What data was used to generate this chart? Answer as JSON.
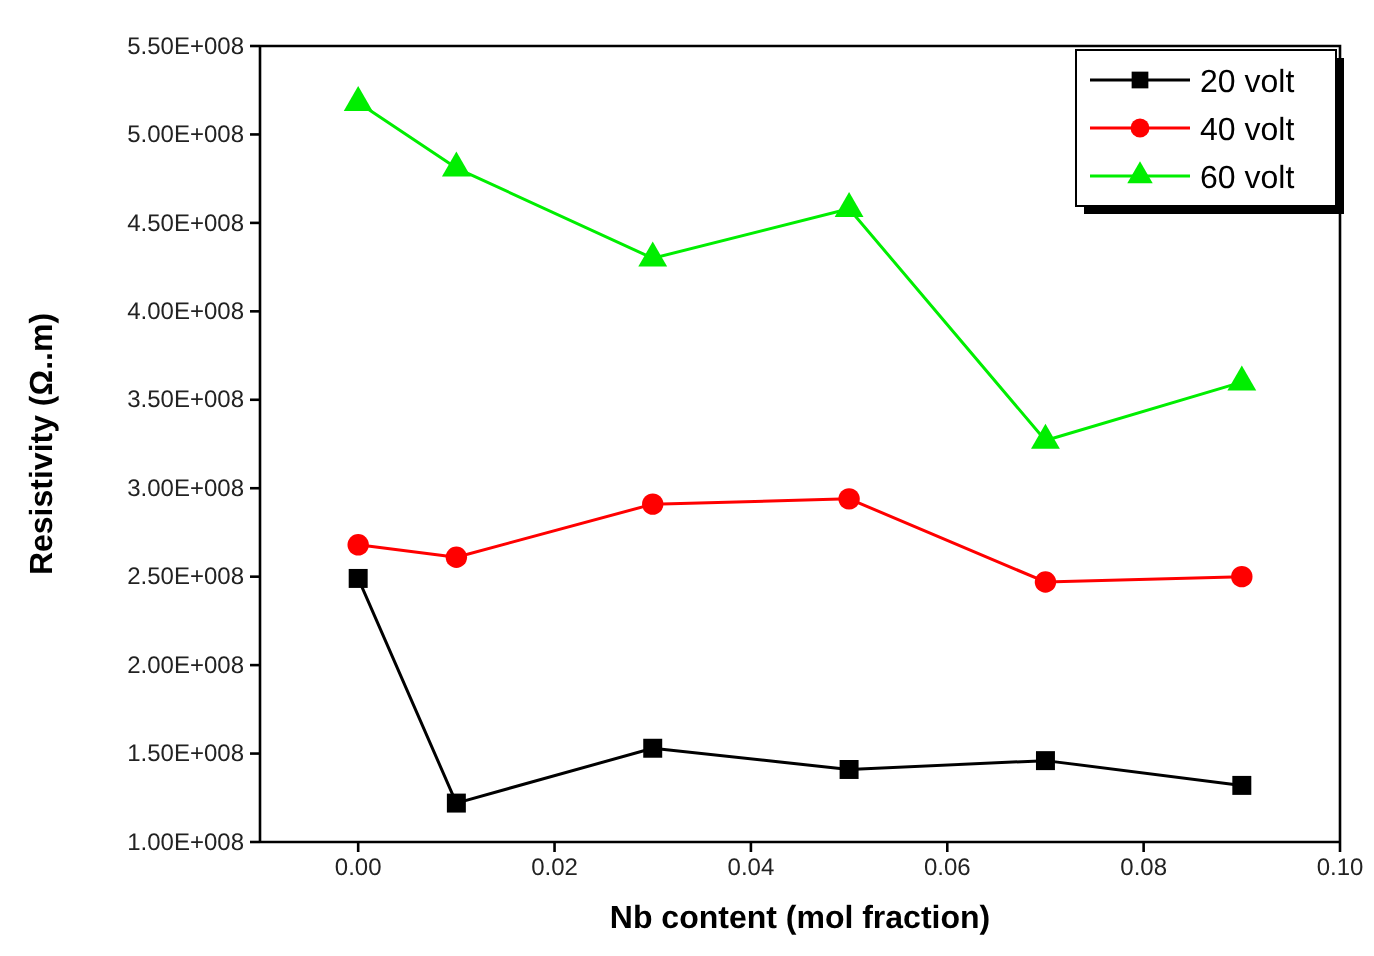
{
  "chart_data": {
    "type": "line",
    "xlabel": "Nb content (mol fraction)",
    "ylabel": "Resistivity (Ω..m)",
    "x": [
      0,
      0.01,
      0.03,
      0.05,
      0.07,
      0.09
    ],
    "series": [
      {
        "name": "20 volt",
        "color": "#000000",
        "marker": "square",
        "values": [
          249000000,
          122000000,
          153000000,
          141000000,
          146000000,
          132000000
        ]
      },
      {
        "name": "40 volt",
        "color": "#ff0000",
        "marker": "circle",
        "values": [
          268000000,
          261000000,
          291000000,
          294000000,
          247000000,
          250000000
        ]
      },
      {
        "name": "60 volt",
        "color": "#00ee00",
        "marker": "triangle",
        "values": [
          518000000,
          481000000,
          430000000,
          458000000,
          327000000,
          360000000
        ]
      }
    ],
    "xlim": [
      -0.01,
      0.1
    ],
    "xticks": [
      {
        "value": 0,
        "label": "0.00"
      },
      {
        "value": 0.02,
        "label": "0.02"
      },
      {
        "value": 0.04,
        "label": "0.04"
      },
      {
        "value": 0.06,
        "label": "0.06"
      },
      {
        "value": 0.08,
        "label": "0.08"
      },
      {
        "value": 0.1,
        "label": "0.10"
      }
    ],
    "ylim": [
      100000000,
      550000000
    ],
    "yticks": [
      {
        "value": 100000000,
        "label": "1.00E+008"
      },
      {
        "value": 150000000,
        "label": "1.50E+008"
      },
      {
        "value": 200000000,
        "label": "2.00E+008"
      },
      {
        "value": 250000000,
        "label": "2.50E+008"
      },
      {
        "value": 300000000,
        "label": "3.00E+008"
      },
      {
        "value": 350000000,
        "label": "3.50E+008"
      },
      {
        "value": 400000000,
        "label": "4.00E+008"
      },
      {
        "value": 450000000,
        "label": "4.50E+008"
      },
      {
        "value": 500000000,
        "label": "5.00E+008"
      },
      {
        "value": 550000000,
        "label": "5.50E+008"
      }
    ],
    "grid": false,
    "legend": "top right",
    "line_style": "solid"
  }
}
